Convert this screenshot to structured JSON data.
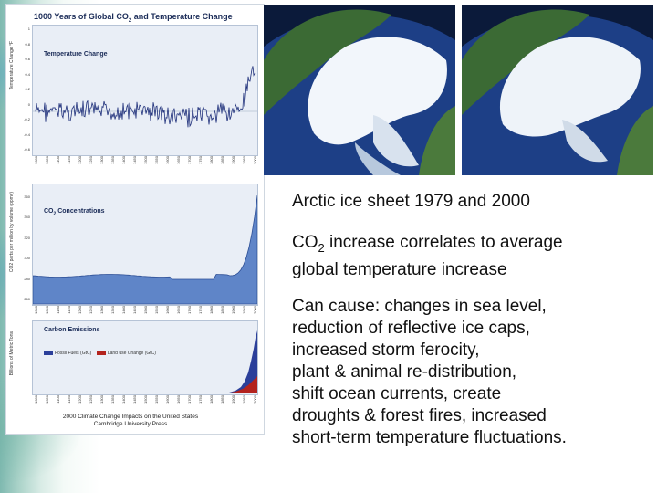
{
  "composite": {
    "title_pre": "1000 Years of Global CO",
    "title_sub": "2",
    "title_post": " and Temperature Change",
    "credit_line1": "2000 Climate Change Impacts on the United States",
    "credit_line2": "Cambridge University Press"
  },
  "temperature_panel": {
    "title": "Temperature Change",
    "ylabel": "Temperature Change °F",
    "yticks": [
      "1",
      "0.8",
      "0.6",
      "0.4",
      "0.2",
      "0",
      "-0.2",
      "-0.4",
      "-0.6"
    ],
    "xticks": [
      "1000",
      "1050",
      "1100",
      "1150",
      "1200",
      "1250",
      "1300",
      "1350",
      "1400",
      "1450",
      "1500",
      "1550",
      "1600",
      "1650",
      "1700",
      "1750",
      "1800",
      "1850",
      "1900",
      "1950",
      "2000"
    ]
  },
  "co2_panel": {
    "title_pre": "CO",
    "title_sub": "2",
    "title_post": " Concentrations",
    "ylabel": "CO2 parts per million by volume (ppmv)",
    "yticks": [
      "360",
      "340",
      "320",
      "300",
      "280",
      "260"
    ],
    "xticks": [
      "1000",
      "1050",
      "1100",
      "1150",
      "1200",
      "1250",
      "1300",
      "1350",
      "1400",
      "1450",
      "1500",
      "1550",
      "1600",
      "1650",
      "1700",
      "1750",
      "1800",
      "1850",
      "1900",
      "1950",
      "2000"
    ]
  },
  "carbon_panel": {
    "title": "Carbon Emissions",
    "ylabel": "Billions of Metric Tons",
    "legend_fossil": "Fossil Fuels (GtC)",
    "legend_landuse": "Land use Change (GtC)",
    "xticks": [
      "1000",
      "1050",
      "1100",
      "1150",
      "1200",
      "1250",
      "1300",
      "1350",
      "1400",
      "1450",
      "1500",
      "1550",
      "1600",
      "1650",
      "1700",
      "1750",
      "1800",
      "1850",
      "1900",
      "1950",
      "2000"
    ]
  },
  "text": {
    "caption": "Arctic ice sheet 1979 and 2000",
    "line2_pre": "CO",
    "line2_sub": "2",
    "line2_post": " increase correlates to average",
    "line3": "global temperature increase",
    "causes": [
      "Can cause: changes in sea level,",
      "reduction of reflective ice caps,",
      "increased storm ferocity,",
      "plant & animal re-distribution,",
      "shift ocean currents, create",
      "droughts & forest fires, increased",
      "short-term temperature fluctuations."
    ]
  },
  "colors": {
    "accent": "#1b2c58",
    "panel_bg": "#e9eef6",
    "temp_line": "#1e2f7a",
    "co2_fill": "#5f85c8",
    "fossil": "#2b3f9a",
    "landuse": "#b3231e"
  }
}
